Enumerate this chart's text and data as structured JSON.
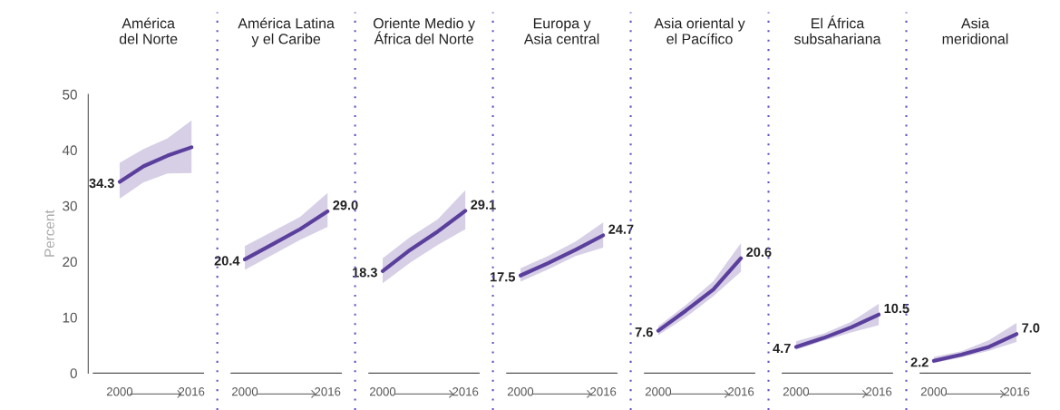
{
  "chart_data": [
    {
      "type": "line",
      "title": "América\ndel Norte",
      "ylabel": "Percent",
      "categories": [
        "2000",
        null,
        null,
        "2016"
      ],
      "ylim": [
        0,
        50
      ],
      "yticks": [
        0,
        10,
        20,
        30,
        40,
        50
      ],
      "series": [
        {
          "color": "#5b3f9c",
          "values": [
            34.3,
            37.1,
            39.0,
            40.5
          ],
          "lower": [
            31.3,
            34.2,
            35.8,
            35.9
          ],
          "upper": [
            37.7,
            40.2,
            42.1,
            45.3
          ],
          "value_labels": [
            "34.3",
            null,
            null,
            null
          ]
        }
      ]
    },
    {
      "type": "line",
      "title": "América Latina\ny el Caribe",
      "categories": [
        "2000",
        null,
        null,
        "2016"
      ],
      "ylim": [
        0,
        50
      ],
      "tick_labels": "x",
      "series": [
        {
          "color": "#5b3f9c",
          "values": [
            20.4,
            23.1,
            25.8,
            29.0
          ],
          "lower": [
            18.5,
            21.2,
            23.9,
            26.2
          ],
          "upper": [
            22.8,
            25.4,
            28.0,
            32.3
          ],
          "value_labels": [
            "20.4",
            null,
            null,
            "29.0"
          ]
        }
      ]
    },
    {
      "type": "line",
      "title": "Oriente Medio y\nÁfrica del Norte",
      "categories": [
        "2000",
        null,
        null,
        "2016"
      ],
      "ylim": [
        0,
        50
      ],
      "tick_labels": "x",
      "series": [
        {
          "color": "#5b3f9c",
          "values": [
            18.3,
            22.1,
            25.4,
            29.1
          ],
          "lower": [
            16.1,
            19.8,
            23.0,
            25.8
          ],
          "upper": [
            20.6,
            24.4,
            27.6,
            32.8
          ],
          "value_labels": [
            "18.3",
            null,
            null,
            "29.1"
          ]
        }
      ]
    },
    {
      "type": "line",
      "title": "Europa y\nAsia central",
      "categories": [
        "2000",
        null,
        null,
        "2016"
      ],
      "ylim": [
        0,
        50
      ],
      "tick_labels": "x",
      "series": [
        {
          "color": "#5b3f9c",
          "values": [
            17.5,
            19.7,
            22.1,
            24.7
          ],
          "lower": [
            16.4,
            18.6,
            21.0,
            22.5
          ],
          "upper": [
            18.8,
            21.0,
            23.6,
            27.0
          ],
          "value_labels": [
            "17.5",
            null,
            null,
            "24.7"
          ]
        }
      ]
    },
    {
      "type": "line",
      "title": "Asia oriental y\nel Pacífico",
      "categories": [
        "2000",
        null,
        null,
        "2016"
      ],
      "ylim": [
        0,
        50
      ],
      "tick_labels": "x",
      "series": [
        {
          "color": "#5b3f9c",
          "values": [
            7.6,
            11.2,
            15.0,
            20.6
          ],
          "lower": [
            6.8,
            10.0,
            13.8,
            18.2
          ],
          "upper": [
            8.4,
            12.2,
            16.5,
            23.3
          ],
          "value_labels": [
            "7.6",
            null,
            null,
            "20.6"
          ]
        }
      ]
    },
    {
      "type": "line",
      "title": "El África\nsubsahariana",
      "categories": [
        "2000",
        null,
        null,
        "2016"
      ],
      "ylim": [
        0,
        50
      ],
      "tick_labels": "x",
      "series": [
        {
          "color": "#5b3f9c",
          "values": [
            4.7,
            6.3,
            8.2,
            10.5
          ],
          "lower": [
            4.2,
            5.8,
            7.3,
            8.6
          ],
          "upper": [
            5.7,
            7.1,
            9.2,
            12.4
          ],
          "value_labels": [
            "4.7",
            null,
            null,
            "10.5"
          ]
        }
      ]
    },
    {
      "type": "line",
      "title": "Asia\nmeridional",
      "categories": [
        "2000",
        null,
        null,
        "2016"
      ],
      "ylim": [
        0,
        50
      ],
      "tick_labels": "x",
      "series": [
        {
          "color": "#5b3f9c",
          "values": [
            2.2,
            3.3,
            4.7,
            7.0
          ],
          "lower": [
            1.8,
            2.8,
            4.0,
            5.6
          ],
          "upper": [
            2.9,
            3.9,
            5.9,
            9.0
          ],
          "value_labels": [
            "2.2",
            null,
            null,
            "7.0"
          ]
        }
      ]
    }
  ]
}
